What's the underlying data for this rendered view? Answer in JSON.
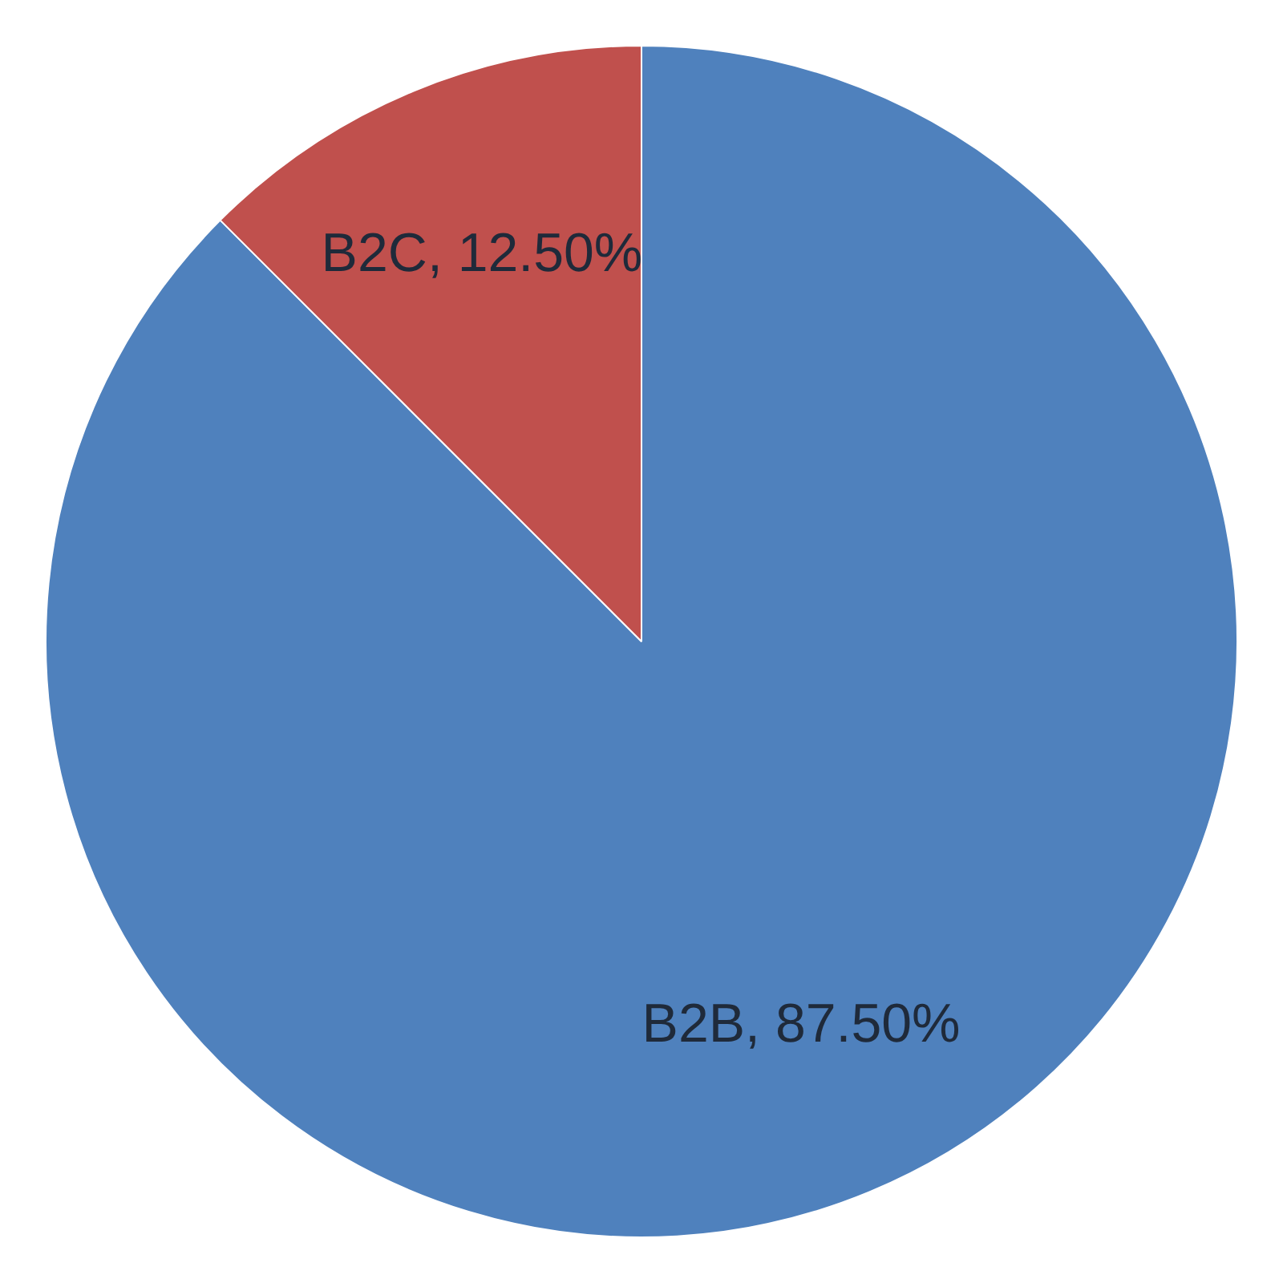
{
  "chart_data": {
    "type": "pie",
    "categories": [
      "B2B",
      "B2C"
    ],
    "values": [
      87.5,
      12.5
    ],
    "colors": [
      "#4f81bd",
      "#c0504d"
    ],
    "value_labels": [
      "87.50%",
      "12.50%"
    ],
    "legend": false
  }
}
